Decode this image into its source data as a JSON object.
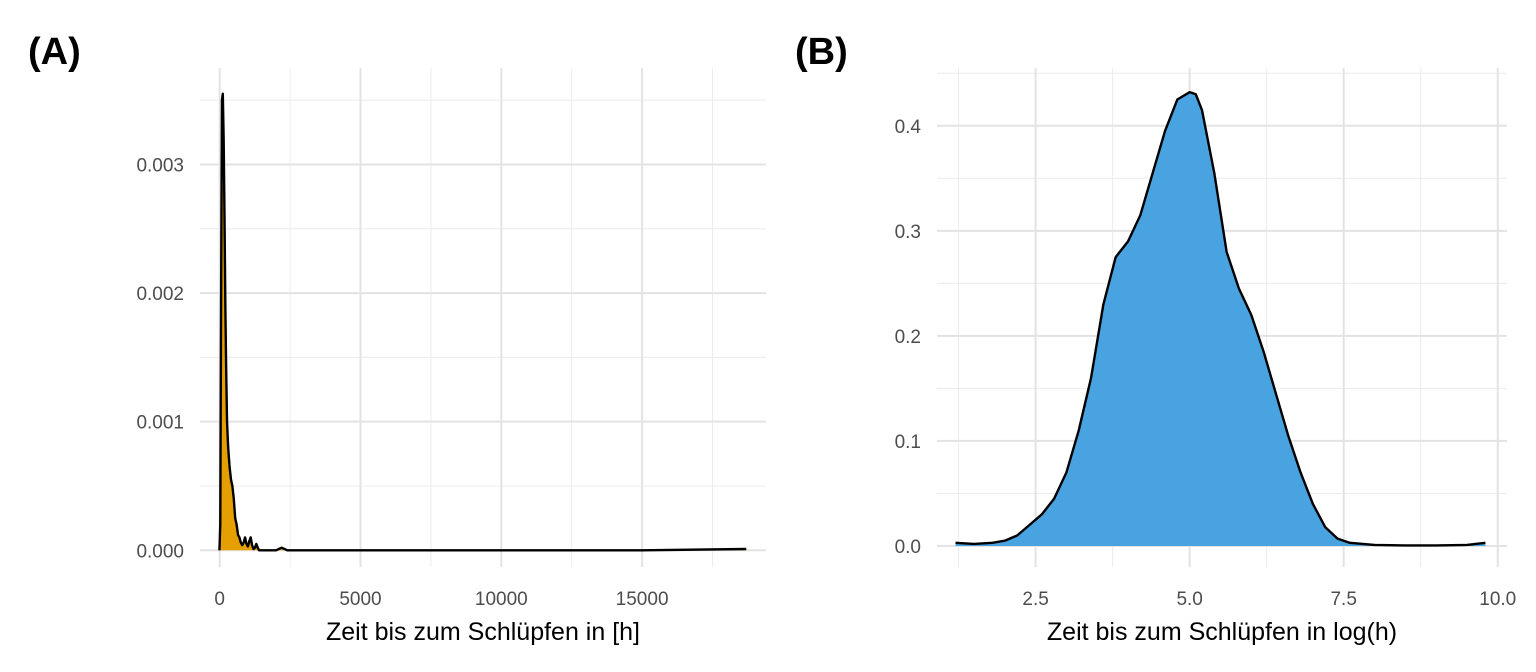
{
  "panels": {
    "a_label": "(A)",
    "b_label": "(B)"
  },
  "chart_data": [
    {
      "type": "area",
      "panel": "(A)",
      "xlabel": "Zeit bis zum Schlüpfen in [h]",
      "ylabel": "",
      "xlim": [
        -700,
        19400
      ],
      "ylim": [
        -0.00013,
        0.00375
      ],
      "x_ticks": [
        0,
        5000,
        10000,
        15000
      ],
      "x_tick_labels": [
        "0",
        "5000",
        "10000",
        "15000"
      ],
      "y_ticks": [
        0.0,
        0.001,
        0.002,
        0.003
      ],
      "y_tick_labels": [
        "0.000",
        "0.001",
        "0.002",
        "0.003"
      ],
      "fill_color": "#E69F00",
      "line_color": "#000000",
      "grid": true,
      "x": [
        -10,
        20,
        50,
        80,
        110,
        140,
        170,
        200,
        230,
        260,
        300,
        350,
        400,
        450,
        500,
        550,
        600,
        650,
        700,
        750,
        800,
        850,
        900,
        950,
        1000,
        1050,
        1100,
        1150,
        1200,
        1250,
        1300,
        1350,
        1400,
        1500,
        1700,
        2000,
        2100,
        2200,
        2300,
        2400,
        3000,
        5000,
        10000,
        15000,
        18700
      ],
      "y": [
        0.0,
        0.0002,
        0.002,
        0.0035,
        0.00355,
        0.0032,
        0.0026,
        0.0019,
        0.0014,
        0.001,
        0.0008,
        0.00065,
        0.00055,
        0.0005,
        0.0004,
        0.00025,
        0.0002,
        0.00012,
        0.0001,
        6e-05,
        4e-05,
        6e-05,
        0.0001,
        5e-05,
        3e-05,
        7e-05,
        0.0001,
        4e-05,
        1e-05,
        2e-05,
        5e-05,
        2e-05,
        0.0,
        0.0,
        0.0,
        0.0,
        1e-05,
        2e-05,
        1e-05,
        0.0,
        0.0,
        0.0,
        0.0,
        0.0,
        1e-05
      ]
    },
    {
      "type": "area",
      "panel": "(B)",
      "xlabel": "Zeit bis zum Schlüpfen in log(h)",
      "ylabel": "",
      "xlim": [
        0.9,
        10.15
      ],
      "ylim": [
        -0.02,
        0.455
      ],
      "x_ticks": [
        2.5,
        5.0,
        7.5,
        10.0
      ],
      "x_tick_labels": [
        "2.5",
        "5.0",
        "7.5",
        "10.0"
      ],
      "y_ticks": [
        0.0,
        0.1,
        0.2,
        0.3,
        0.4
      ],
      "y_tick_labels": [
        "0.0",
        "0.1",
        "0.2",
        "0.3",
        "0.4"
      ],
      "fill_color": "#4AA3E1",
      "line_color": "#000000",
      "grid": true,
      "x": [
        1.2,
        1.5,
        1.8,
        2.0,
        2.2,
        2.4,
        2.6,
        2.8,
        3.0,
        3.2,
        3.4,
        3.6,
        3.8,
        4.0,
        4.2,
        4.4,
        4.6,
        4.8,
        5.0,
        5.1,
        5.2,
        5.4,
        5.6,
        5.8,
        6.0,
        6.2,
        6.4,
        6.6,
        6.8,
        7.0,
        7.2,
        7.4,
        7.6,
        8.0,
        8.5,
        9.0,
        9.5,
        9.8
      ],
      "y": [
        0.003,
        0.002,
        0.003,
        0.005,
        0.01,
        0.02,
        0.03,
        0.045,
        0.07,
        0.11,
        0.16,
        0.23,
        0.275,
        0.29,
        0.315,
        0.355,
        0.395,
        0.425,
        0.432,
        0.43,
        0.415,
        0.355,
        0.28,
        0.245,
        0.22,
        0.185,
        0.145,
        0.105,
        0.07,
        0.04,
        0.018,
        0.007,
        0.003,
        0.001,
        0.0005,
        0.0005,
        0.001,
        0.003
      ]
    }
  ]
}
